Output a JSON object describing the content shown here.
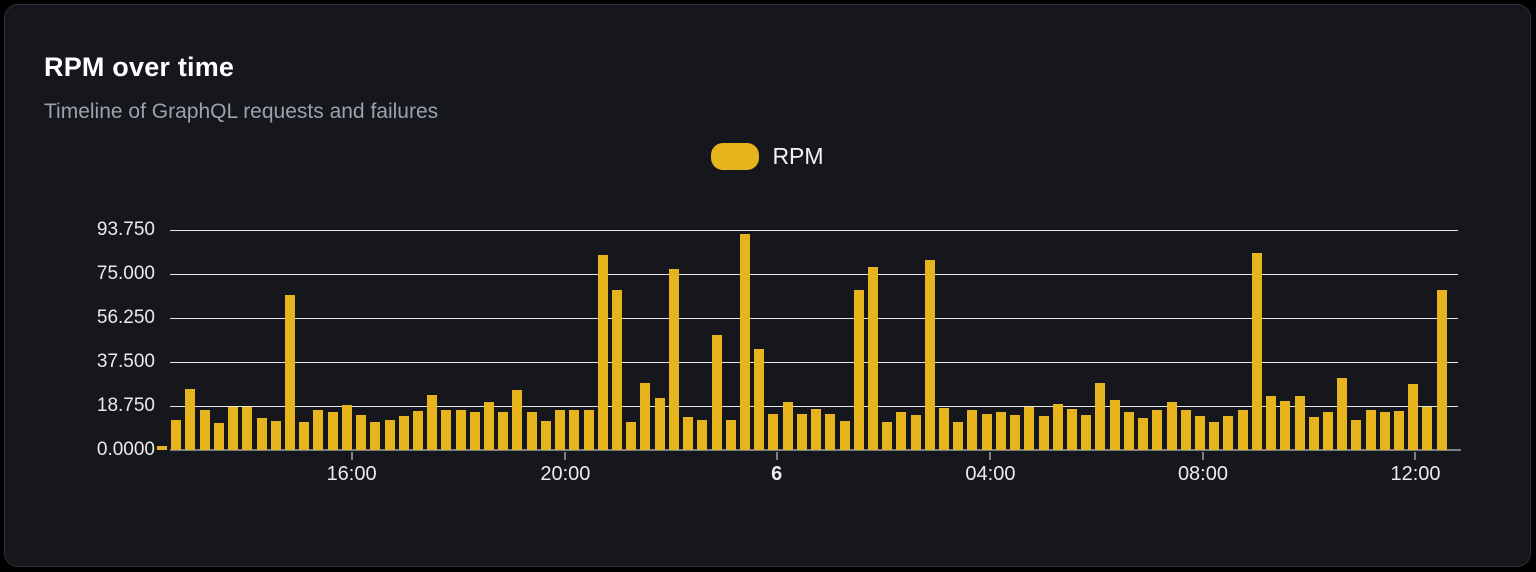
{
  "card": {
    "title": "RPM over time",
    "subtitle": "Timeline of GraphQL requests and failures"
  },
  "legend": {
    "label": "RPM",
    "swatch_color": "#e7b41d"
  },
  "chart_data": {
    "type": "bar",
    "title": "RPM over time",
    "series_name": "RPM",
    "xlabel": "",
    "ylabel": "",
    "ylim": [
      0,
      93.75
    ],
    "grid": true,
    "legend_position": "top-center",
    "bar_color": "#e7b41d",
    "grid_color": "#e2e4e9",
    "axis_color": "#7b7f86",
    "background_color": "#15171c",
    "y_ticks": [
      "0.0000",
      "18.750",
      "37.500",
      "56.250",
      "75.000",
      "93.750"
    ],
    "x_ticks": [
      {
        "label": "16:00",
        "pct": 14.1,
        "bold": false
      },
      {
        "label": "20:00",
        "pct": 30.7,
        "bold": false
      },
      {
        "label": "6",
        "pct": 47.1,
        "bold": true
      },
      {
        "label": "04:00",
        "pct": 63.7,
        "bold": false
      },
      {
        "label": "08:00",
        "pct": 80.2,
        "bold": false
      },
      {
        "label": "12:00",
        "pct": 96.7,
        "bold": false
      }
    ],
    "values": [
      1.5,
      13,
      26,
      17,
      11.5,
      18.5,
      18.5,
      13.5,
      12.5,
      66,
      12,
      17,
      16,
      19,
      15,
      12,
      13,
      14.5,
      16.5,
      23.5,
      17,
      17,
      16,
      20.5,
      16,
      25.5,
      16,
      12.5,
      17,
      17,
      17,
      83,
      68,
      12,
      28.5,
      22,
      77,
      14,
      13,
      49,
      13,
      92,
      43,
      15.5,
      20.5,
      15.5,
      17.5,
      15.5,
      12.5,
      68,
      78,
      12,
      16,
      15,
      81,
      18,
      12,
      17,
      15.5,
      16,
      15,
      18.5,
      14.5,
      19.5,
      17.5,
      15,
      28.5,
      21.5,
      16,
      13.5,
      17,
      20.5,
      17,
      14.5,
      12,
      14.5,
      17,
      84,
      23,
      21,
      23,
      14,
      16,
      30.5,
      13,
      17,
      16,
      16.5,
      28,
      18.5,
      68
    ]
  }
}
